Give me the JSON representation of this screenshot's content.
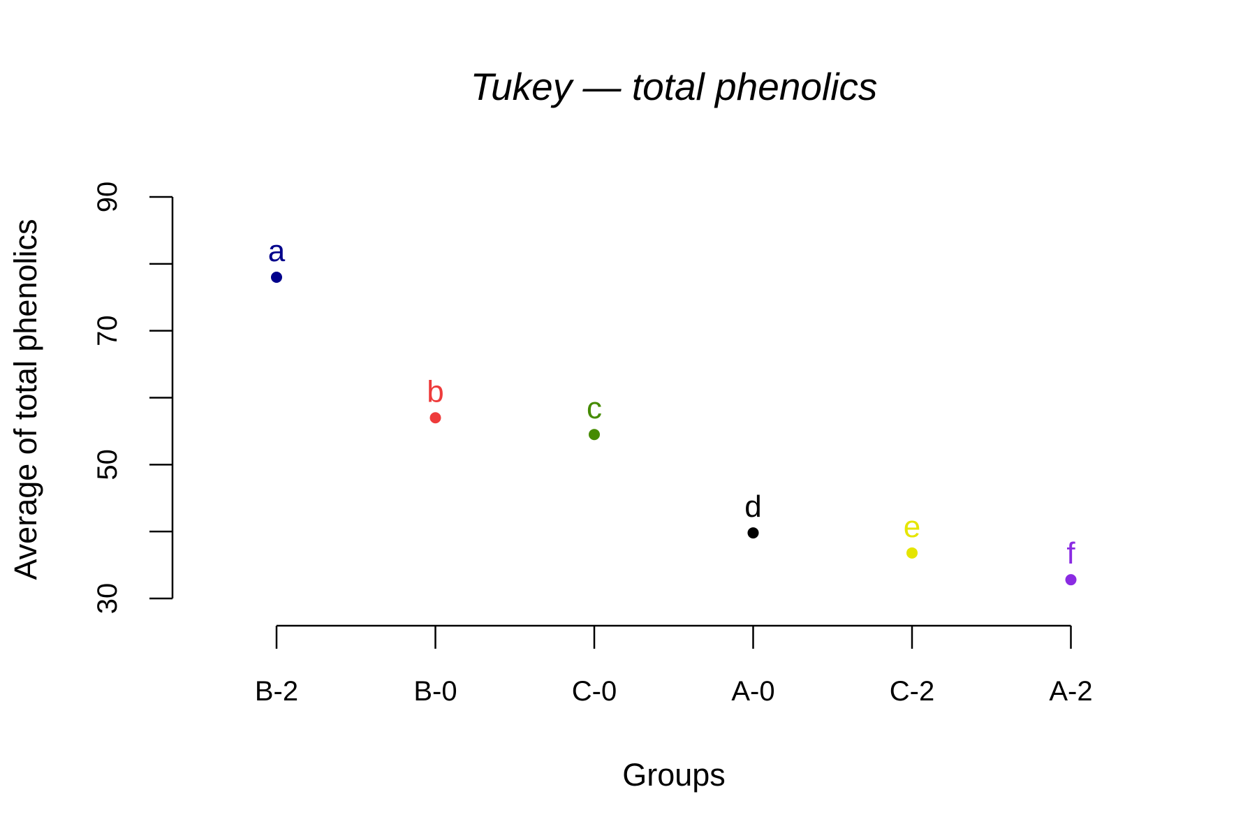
{
  "chart_data": {
    "type": "scatter",
    "title": "Tukey — total phenolics",
    "xlabel": "Groups",
    "ylabel": "Average of total phenolics",
    "categories": [
      "B-2",
      "B-0",
      "C-0",
      "A-0",
      "C-2",
      "A-2"
    ],
    "values": [
      78.0,
      57.0,
      54.5,
      39.8,
      36.8,
      32.8
    ],
    "letters": [
      "a",
      "b",
      "c",
      "d",
      "e",
      "f"
    ],
    "colors": [
      "#00008B",
      "#EE3B3B",
      "#458B00",
      "#000000",
      "#E5E500",
      "#8A2BE2"
    ],
    "yticks": [
      30,
      40,
      50,
      60,
      70,
      80,
      90
    ],
    "ytick_labels": [
      "30",
      "",
      "50",
      "",
      "70",
      "",
      "90"
    ],
    "ylim": [
      30,
      90
    ],
    "grid": false,
    "legend": "none"
  }
}
